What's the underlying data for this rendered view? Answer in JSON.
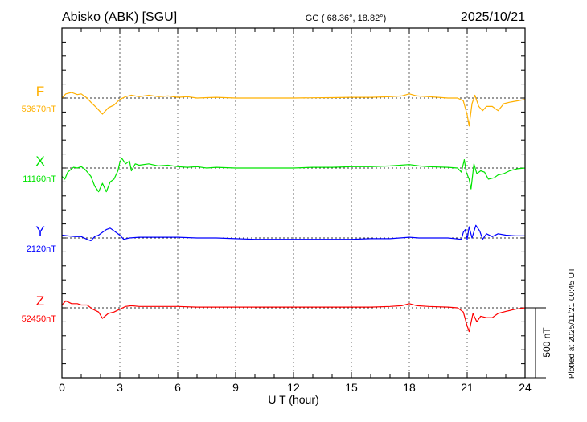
{
  "header": {
    "station": "Abisko (ABK)  [SGU]",
    "coords": "GG ( 68.36°,  18.82°)",
    "date": "2025/10/21"
  },
  "footer": {
    "plotted": "Plotted at 2025/11/21 00:45 UT"
  },
  "chart_data": {
    "type": "line",
    "xlabel": "U T (hour)",
    "xlim": [
      0,
      24
    ],
    "xticks": [
      "0",
      "3",
      "6",
      "9",
      "12",
      "15",
      "18",
      "21",
      "24"
    ],
    "scale_bar": {
      "label": "500 nT",
      "value_nT": 500
    },
    "y_tick_interval_nT": 100,
    "series": [
      {
        "name": "F",
        "baseline_label": "53670nT",
        "baseline_nT": 53670,
        "color": "#ffb000",
        "points": [
          [
            0,
            0
          ],
          [
            0.2,
            30
          ],
          [
            0.5,
            40
          ],
          [
            0.8,
            25
          ],
          [
            1,
            30
          ],
          [
            1.3,
            0
          ],
          [
            1.5,
            -30
          ],
          [
            1.8,
            -70
          ],
          [
            2.1,
            -115
          ],
          [
            2.4,
            -70
          ],
          [
            2.7,
            -50
          ],
          [
            3,
            -10
          ],
          [
            3.3,
            10
          ],
          [
            3.6,
            20
          ],
          [
            4,
            10
          ],
          [
            4.5,
            20
          ],
          [
            5,
            10
          ],
          [
            5.5,
            15
          ],
          [
            6,
            5
          ],
          [
            6.5,
            10
          ],
          [
            7,
            0
          ],
          [
            8,
            5
          ],
          [
            9,
            0
          ],
          [
            10,
            0
          ],
          [
            11,
            0
          ],
          [
            12,
            0
          ],
          [
            13,
            2
          ],
          [
            14,
            3
          ],
          [
            15,
            5
          ],
          [
            16,
            5
          ],
          [
            17,
            10
          ],
          [
            17.6,
            15
          ],
          [
            18,
            30
          ],
          [
            18.4,
            15
          ],
          [
            19,
            10
          ],
          [
            19.5,
            5
          ],
          [
            20,
            0
          ],
          [
            20.5,
            0
          ],
          [
            20.8,
            -20
          ],
          [
            21,
            -120
          ],
          [
            21.1,
            -200
          ],
          [
            21.25,
            -40
          ],
          [
            21.4,
            20
          ],
          [
            21.6,
            -60
          ],
          [
            21.8,
            -90
          ],
          [
            22,
            -60
          ],
          [
            22.3,
            -60
          ],
          [
            22.6,
            -90
          ],
          [
            22.9,
            -40
          ],
          [
            23.2,
            -30
          ],
          [
            23.6,
            -20
          ],
          [
            24,
            -10
          ]
        ]
      },
      {
        "name": "X",
        "baseline_label": "11160nT",
        "baseline_nT": 11160,
        "color": "#00e400",
        "points": [
          [
            0,
            -60
          ],
          [
            0.15,
            -80
          ],
          [
            0.3,
            -30
          ],
          [
            0.6,
            5
          ],
          [
            0.8,
            0
          ],
          [
            1,
            10
          ],
          [
            1.2,
            -10
          ],
          [
            1.5,
            -60
          ],
          [
            1.7,
            -130
          ],
          [
            1.9,
            -170
          ],
          [
            2.1,
            -110
          ],
          [
            2.3,
            -170
          ],
          [
            2.5,
            -100
          ],
          [
            2.7,
            -80
          ],
          [
            2.9,
            -20
          ],
          [
            3,
            40
          ],
          [
            3.1,
            70
          ],
          [
            3.3,
            30
          ],
          [
            3.5,
            50
          ],
          [
            3.6,
            -20
          ],
          [
            3.8,
            30
          ],
          [
            4,
            20
          ],
          [
            4.5,
            30
          ],
          [
            5,
            15
          ],
          [
            5.5,
            20
          ],
          [
            6,
            10
          ],
          [
            6.5,
            5
          ],
          [
            7,
            10
          ],
          [
            7.5,
            0
          ],
          [
            8,
            5
          ],
          [
            9,
            0
          ],
          [
            10,
            0
          ],
          [
            11,
            0
          ],
          [
            12,
            0
          ],
          [
            13,
            5
          ],
          [
            14,
            5
          ],
          [
            15,
            10
          ],
          [
            16,
            10
          ],
          [
            17,
            15
          ],
          [
            18,
            25
          ],
          [
            18.5,
            15
          ],
          [
            19,
            10
          ],
          [
            20,
            5
          ],
          [
            20.5,
            0
          ],
          [
            20.7,
            -30
          ],
          [
            20.85,
            60
          ],
          [
            20.95,
            -30
          ],
          [
            21.1,
            -80
          ],
          [
            21.2,
            -150
          ],
          [
            21.35,
            30
          ],
          [
            21.5,
            -40
          ],
          [
            21.7,
            -20
          ],
          [
            21.9,
            -30
          ],
          [
            22.1,
            -80
          ],
          [
            22.4,
            -70
          ],
          [
            22.6,
            -50
          ],
          [
            22.9,
            -40
          ],
          [
            23.2,
            -20
          ],
          [
            23.6,
            -5
          ],
          [
            24,
            0
          ]
        ]
      },
      {
        "name": "Y",
        "baseline_label": "2120nT",
        "baseline_nT": 2120,
        "color": "#0000ff",
        "points": [
          [
            0,
            20
          ],
          [
            0.3,
            15
          ],
          [
            0.7,
            10
          ],
          [
            1,
            10
          ],
          [
            1.3,
            -10
          ],
          [
            1.5,
            -20
          ],
          [
            1.7,
            10
          ],
          [
            1.9,
            20
          ],
          [
            2.1,
            40
          ],
          [
            2.3,
            60
          ],
          [
            2.5,
            70
          ],
          [
            2.8,
            40
          ],
          [
            3,
            20
          ],
          [
            3.2,
            -10
          ],
          [
            3.5,
            0
          ],
          [
            4,
            5
          ],
          [
            5,
            5
          ],
          [
            6,
            5
          ],
          [
            7,
            0
          ],
          [
            8,
            0
          ],
          [
            9,
            -5
          ],
          [
            10,
            -10
          ],
          [
            11,
            -10
          ],
          [
            12,
            -10
          ],
          [
            13,
            -10
          ],
          [
            14,
            -10
          ],
          [
            15,
            -10
          ],
          [
            16,
            -5
          ],
          [
            17,
            -5
          ],
          [
            18,
            5
          ],
          [
            18.5,
            0
          ],
          [
            19,
            0
          ],
          [
            20,
            0
          ],
          [
            20.7,
            -10
          ],
          [
            20.8,
            40
          ],
          [
            20.9,
            60
          ],
          [
            21,
            -10
          ],
          [
            21.1,
            80
          ],
          [
            21.25,
            0
          ],
          [
            21.45,
            90
          ],
          [
            21.65,
            50
          ],
          [
            21.8,
            -10
          ],
          [
            22,
            30
          ],
          [
            22.3,
            10
          ],
          [
            22.6,
            30
          ],
          [
            23,
            20
          ],
          [
            23.5,
            15
          ],
          [
            24,
            15
          ]
        ]
      },
      {
        "name": "Z",
        "baseline_label": "52450nT",
        "baseline_nT": 52450,
        "color": "#ff0000",
        "points": [
          [
            0,
            20
          ],
          [
            0.2,
            50
          ],
          [
            0.5,
            30
          ],
          [
            0.8,
            30
          ],
          [
            1,
            20
          ],
          [
            1.3,
            20
          ],
          [
            1.6,
            -10
          ],
          [
            1.9,
            -30
          ],
          [
            2.1,
            -75
          ],
          [
            2.4,
            -40
          ],
          [
            2.7,
            -30
          ],
          [
            3,
            -10
          ],
          [
            3.3,
            10
          ],
          [
            3.6,
            15
          ],
          [
            4,
            10
          ],
          [
            5,
            10
          ],
          [
            6,
            10
          ],
          [
            7,
            5
          ],
          [
            8,
            5
          ],
          [
            9,
            5
          ],
          [
            10,
            5
          ],
          [
            11,
            5
          ],
          [
            12,
            5
          ],
          [
            13,
            5
          ],
          [
            14,
            5
          ],
          [
            15,
            5
          ],
          [
            16,
            5
          ],
          [
            17,
            10
          ],
          [
            17.6,
            15
          ],
          [
            18,
            30
          ],
          [
            18.4,
            15
          ],
          [
            19,
            10
          ],
          [
            20,
            5
          ],
          [
            20.5,
            0
          ],
          [
            20.8,
            -30
          ],
          [
            21,
            -130
          ],
          [
            21.1,
            -170
          ],
          [
            21.3,
            -40
          ],
          [
            21.5,
            -100
          ],
          [
            21.7,
            -60
          ],
          [
            22,
            -70
          ],
          [
            22.3,
            -70
          ],
          [
            22.6,
            -40
          ],
          [
            23,
            -25
          ],
          [
            23.5,
            -10
          ],
          [
            24,
            0
          ]
        ]
      }
    ]
  }
}
